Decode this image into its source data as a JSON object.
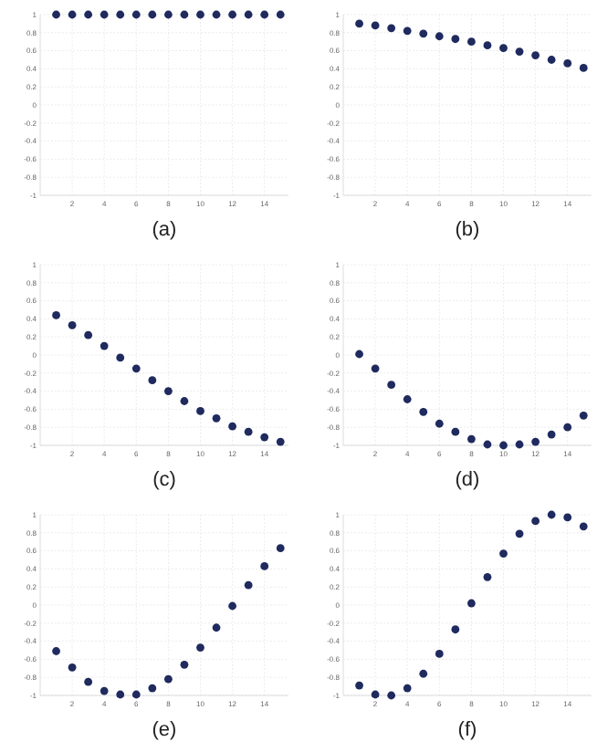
{
  "chart_data": [
    {
      "type": "scatter",
      "title": "(a)",
      "x": [
        1,
        2,
        3,
        4,
        5,
        6,
        7,
        8,
        9,
        10,
        11,
        12,
        13,
        14,
        15
      ],
      "series": [
        {
          "color": "#1f2a5e",
          "values": [
            1,
            1,
            1,
            1,
            1,
            1,
            1,
            1,
            1,
            1,
            1,
            1,
            1,
            1,
            1
          ]
        }
      ],
      "xlim": [
        0,
        15.5
      ],
      "ylim": [
        -1,
        1
      ],
      "xticks": [
        2,
        4,
        6,
        8,
        10,
        12,
        14
      ],
      "yticks": [
        -1,
        -0.8,
        -0.6,
        -0.4,
        -0.2,
        0,
        0.2,
        0.4,
        0.6,
        0.8,
        1
      ],
      "marker": "circle",
      "grid": true
    },
    {
      "type": "scatter",
      "title": "(b)",
      "x": [
        1,
        2,
        3,
        4,
        5,
        6,
        7,
        8,
        9,
        10,
        11,
        12,
        13,
        14,
        15
      ],
      "series": [
        {
          "color": "#1f2a5e",
          "values": [
            0.9,
            0.88,
            0.85,
            0.82,
            0.79,
            0.76,
            0.73,
            0.7,
            0.66,
            0.63,
            0.59,
            0.55,
            0.5,
            0.46,
            0.41
          ]
        }
      ],
      "xlim": [
        0,
        15.5
      ],
      "ylim": [
        -1,
        1
      ],
      "xticks": [
        2,
        4,
        6,
        8,
        10,
        12,
        14
      ],
      "yticks": [
        -1,
        -0.8,
        -0.6,
        -0.4,
        -0.2,
        0,
        0.2,
        0.4,
        0.6,
        0.8,
        1
      ],
      "marker": "circle",
      "grid": true
    },
    {
      "type": "scatter",
      "title": "(c)",
      "x": [
        1,
        2,
        3,
        4,
        5,
        6,
        7,
        8,
        9,
        10,
        11,
        12,
        13,
        14,
        15
      ],
      "series": [
        {
          "color": "#1f2a5e",
          "values": [
            0.44,
            0.33,
            0.22,
            0.1,
            -0.03,
            -0.15,
            -0.28,
            -0.4,
            -0.51,
            -0.62,
            -0.7,
            -0.79,
            -0.85,
            -0.91,
            -0.96
          ]
        }
      ],
      "xlim": [
        0,
        15.5
      ],
      "ylim": [
        -1,
        1
      ],
      "xticks": [
        2,
        4,
        6,
        8,
        10,
        12,
        14
      ],
      "yticks": [
        -1,
        -0.8,
        -0.6,
        -0.4,
        -0.2,
        0,
        0.2,
        0.4,
        0.6,
        0.8,
        1
      ],
      "marker": "circle",
      "grid": true
    },
    {
      "type": "scatter",
      "title": "(d)",
      "x": [
        1,
        2,
        3,
        4,
        5,
        6,
        7,
        8,
        9,
        10,
        11,
        12,
        13,
        14,
        15
      ],
      "series": [
        {
          "color": "#1f2a5e",
          "values": [
            0.01,
            -0.15,
            -0.33,
            -0.49,
            -0.63,
            -0.76,
            -0.85,
            -0.93,
            -0.99,
            -1,
            -0.99,
            -0.96,
            -0.88,
            -0.8,
            -0.67
          ]
        }
      ],
      "xlim": [
        0,
        15.5
      ],
      "ylim": [
        -1,
        1
      ],
      "xticks": [
        2,
        4,
        6,
        8,
        10,
        12,
        14
      ],
      "yticks": [
        -1,
        -0.8,
        -0.6,
        -0.4,
        -0.2,
        0,
        0.2,
        0.4,
        0.6,
        0.8,
        1
      ],
      "marker": "circle",
      "grid": true
    },
    {
      "type": "scatter",
      "title": "(e)",
      "x": [
        1,
        2,
        3,
        4,
        5,
        6,
        7,
        8,
        9,
        10,
        11,
        12,
        13,
        14,
        15
      ],
      "series": [
        {
          "color": "#1f2a5e",
          "values": [
            -0.51,
            -0.69,
            -0.85,
            -0.95,
            -0.99,
            -0.99,
            -0.92,
            -0.82,
            -0.66,
            -0.47,
            -0.25,
            -0.01,
            0.22,
            0.43,
            0.63
          ]
        }
      ],
      "xlim": [
        0,
        15.5
      ],
      "ylim": [
        -1,
        1
      ],
      "xticks": [
        2,
        4,
        6,
        8,
        10,
        12,
        14
      ],
      "yticks": [
        -1,
        -0.8,
        -0.6,
        -0.4,
        -0.2,
        0,
        0.2,
        0.4,
        0.6,
        0.8,
        1
      ],
      "marker": "circle",
      "grid": true
    },
    {
      "type": "scatter",
      "title": "(f)",
      "x": [
        1,
        2,
        3,
        4,
        5,
        6,
        7,
        8,
        9,
        10,
        11,
        12,
        13,
        14,
        15
      ],
      "series": [
        {
          "color": "#1f2a5e",
          "values": [
            -0.89,
            -0.99,
            -1,
            -0.92,
            -0.76,
            -0.54,
            -0.27,
            0.02,
            0.31,
            0.57,
            0.79,
            0.93,
            1,
            0.97,
            0.87
          ]
        }
      ],
      "xlim": [
        0,
        15.5
      ],
      "ylim": [
        -1,
        1
      ],
      "xticks": [
        2,
        4,
        6,
        8,
        10,
        12,
        14
      ],
      "yticks": [
        -1,
        -0.8,
        -0.6,
        -0.4,
        -0.2,
        0,
        0.2,
        0.4,
        0.6,
        0.8,
        1
      ],
      "marker": "circle",
      "grid": true
    }
  ]
}
